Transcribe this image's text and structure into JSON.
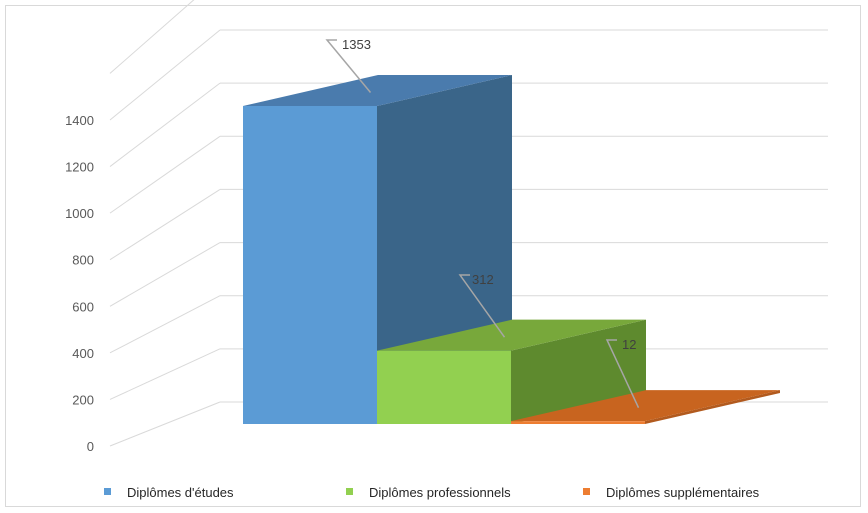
{
  "chart_data": {
    "type": "bar",
    "categories": [
      "Diplômes d'études",
      "Diplômes professionnels",
      "Diplômes supplémentaires"
    ],
    "values": [
      1353,
      312,
      12
    ],
    "ylim": [
      0,
      1400
    ],
    "yticks": [
      0,
      200,
      400,
      600,
      800,
      1000,
      1200,
      1400
    ],
    "grid": true,
    "legend_position": "bottom",
    "colors": [
      "#5B9BD5",
      "#92D050",
      "#ED7D31"
    ],
    "side_colors": [
      "#3A6589",
      "#5E8A2E",
      "#B25A1E"
    ],
    "top_colors": [
      "#4A7BAD",
      "#78A83B",
      "#C8641F"
    ],
    "style": "3d-clustered-column"
  }
}
